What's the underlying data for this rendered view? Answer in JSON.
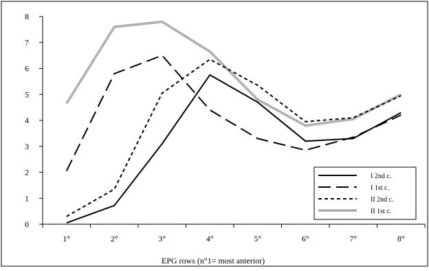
{
  "chart_data": {
    "type": "line",
    "title": "",
    "xlabel": "EPG rows (n°1= most anterior)",
    "ylabel": "",
    "categories": [
      "1°",
      "2°",
      "3°",
      "4°",
      "5°",
      "6°",
      "7°",
      "8°"
    ],
    "ylim": [
      0,
      8
    ],
    "yticks": [
      "0",
      "1",
      "2",
      "3",
      "4",
      "5",
      "6",
      "7",
      "8"
    ],
    "grid": false,
    "legend_position": "bottom-right",
    "series": [
      {
        "name": "I 2nd c.",
        "values": [
          0.05,
          0.72,
          3.1,
          5.75,
          4.7,
          3.2,
          3.3,
          4.3
        ],
        "style": "solid",
        "color": "#000000"
      },
      {
        "name": "I 1st c.",
        "values": [
          2.05,
          5.8,
          6.5,
          4.4,
          3.3,
          2.85,
          3.35,
          4.2
        ],
        "style": "long-dash",
        "color": "#000000"
      },
      {
        "name": "II 2nd c.",
        "values": [
          0.3,
          1.35,
          5.05,
          6.35,
          5.35,
          3.95,
          4.1,
          4.95
        ],
        "style": "short-dash",
        "color": "#000000"
      },
      {
        "name": "II 1st c.",
        "values": [
          4.65,
          7.6,
          7.8,
          6.65,
          4.8,
          3.8,
          4.05,
          5.0
        ],
        "style": "gray-thick",
        "color": "#a8a8a8"
      }
    ]
  }
}
